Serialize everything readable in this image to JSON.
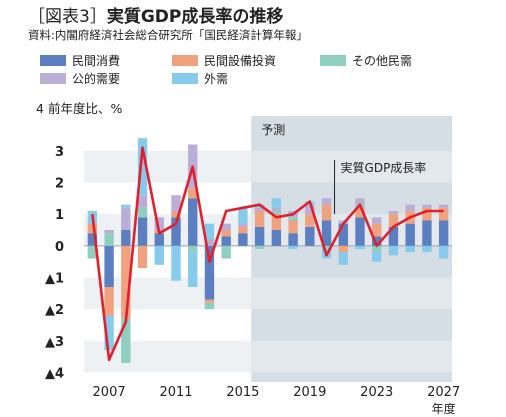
{
  "title": {
    "prefix": "［図表3］",
    "main": "実質GDP成長率の推移"
  },
  "source": "資料:内閣府経済社会総合研究所「国民経済計算年報」",
  "colors": {
    "private_consumption": "#5b7fc1",
    "private_capex": "#f0a27e",
    "other_private": "#8fcfbf",
    "public_demand": "#b9afd6",
    "external_demand": "#86cbeb",
    "gdp_line": "#e0202e",
    "forecast_shade": "#d5dde5",
    "grid_band": "#eef1f4"
  },
  "chart_data": {
    "type": "bar",
    "stacked": true,
    "unit_label": "前年度比、%",
    "x_unit": "年度",
    "x": [
      2006,
      2007,
      2008,
      2009,
      2010,
      2011,
      2012,
      2013,
      2014,
      2015,
      2016,
      2017,
      2018,
      2019,
      2020,
      2021,
      2022,
      2023,
      2024,
      2025,
      2026,
      2027
    ],
    "x_tick_labels": [
      "2007",
      "2011",
      "2015",
      "2019",
      "2023",
      "2027"
    ],
    "y_tick_labels": [
      "4",
      "3",
      "2",
      "1",
      "0",
      "▲1",
      "▲2",
      "▲3",
      "▲4"
    ],
    "y_tick_values": [
      4,
      3,
      2,
      1,
      0,
      -1,
      -2,
      -3,
      -4
    ],
    "ylim": [
      -4.3,
      4.1
    ],
    "forecast_label": "予測",
    "forecast_start": 2016,
    "series": [
      {
        "name": "民間消費",
        "values": [
          0.4,
          -1.3,
          0.5,
          0.9,
          0.4,
          0.9,
          1.5,
          -1.7,
          0.3,
          0.4,
          0.6,
          0.5,
          0.4,
          0.6,
          0.8,
          0.7,
          0.9,
          0.3,
          0.6,
          0.7,
          0.8,
          0.8
        ]
      },
      {
        "name": "民間設備投資",
        "values": [
          0.3,
          -0.9,
          -2.3,
          -0.7,
          0.1,
          0.2,
          0.3,
          -0.1,
          0.2,
          0.2,
          0.5,
          0.5,
          0.4,
          0.4,
          0.5,
          -0.2,
          0.3,
          0.4,
          0.4,
          0.4,
          0.4,
          0.4
        ]
      },
      {
        "name": "その他民需",
        "values": [
          -0.4,
          0.4,
          -1.4,
          0.3,
          0.0,
          0.0,
          -0.2,
          -0.2,
          -0.4,
          0.0,
          -0.1,
          0.1,
          0.1,
          0.0,
          -0.1,
          0.0,
          0.1,
          -0.2,
          0.0,
          0.0,
          0.0,
          0.0
        ]
      },
      {
        "name": "公的需要",
        "values": [
          0.0,
          0.1,
          0.7,
          0.4,
          0.4,
          0.5,
          1.4,
          0.2,
          0.2,
          0.1,
          0.1,
          0.1,
          0.2,
          0.3,
          0.2,
          0.1,
          0.2,
          0.2,
          0.1,
          0.2,
          0.1,
          0.1
        ]
      },
      {
        "name": "外需",
        "values": [
          0.4,
          -1.1,
          0.1,
          1.8,
          -0.6,
          -1.1,
          -1.1,
          0.5,
          0.0,
          0.5,
          0.1,
          0.3,
          -0.1,
          0.1,
          -0.3,
          -0.4,
          -0.1,
          -0.3,
          -0.3,
          -0.2,
          -0.2,
          -0.4
        ]
      },
      {
        "name": "実質GDP成長率",
        "type": "line",
        "values": [
          1.0,
          -3.6,
          -2.4,
          3.1,
          0.4,
          0.7,
          2.5,
          -0.5,
          1.1,
          1.2,
          1.3,
          0.9,
          1.0,
          1.4,
          -0.3,
          0.7,
          1.3,
          0.0,
          0.6,
          0.9,
          1.1,
          1.1
        ]
      }
    ],
    "annotations": {
      "line_label": "実質GDP成長率",
      "line_label_year": 2020
    }
  }
}
